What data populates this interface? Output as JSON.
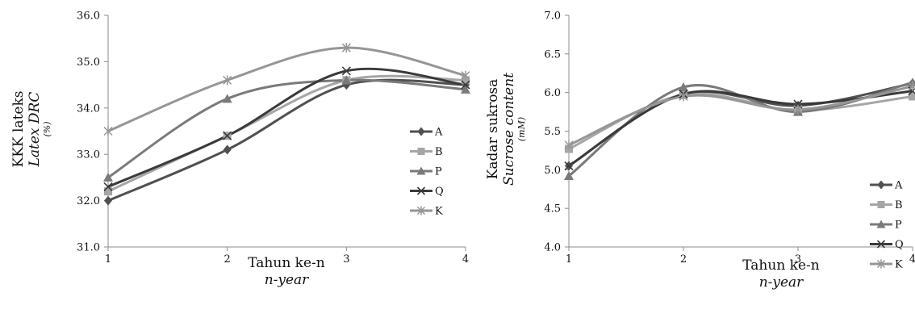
{
  "chart_data": [
    {
      "type": "line",
      "x": [
        1,
        2,
        3,
        4
      ],
      "xlabel": "Tahun ke-n",
      "xlabel_italic": "n-year",
      "ylabel": "KKK lateks",
      "ylabel_italic": "Latex DRC",
      "yunit": "(%)",
      "ylim": [
        31.0,
        36.0
      ],
      "yticks": [
        "31.0",
        "32.0",
        "33.0",
        "34.0",
        "35.0",
        "36.0"
      ],
      "xticks": [
        "1",
        "2",
        "3",
        "4"
      ],
      "grid": false,
      "legend_position": "right",
      "series": [
        {
          "name": "A",
          "marker": "diamond",
          "color": "#505050",
          "values": [
            32.0,
            33.1,
            34.5,
            34.5
          ]
        },
        {
          "name": "B",
          "marker": "square",
          "color": "#a6a6a6",
          "values": [
            32.2,
            33.4,
            34.6,
            34.6
          ]
        },
        {
          "name": "P",
          "marker": "triangle",
          "color": "#7a7a7a",
          "values": [
            32.5,
            34.2,
            34.6,
            34.4
          ]
        },
        {
          "name": "Q",
          "marker": "x",
          "color": "#3a3a3a",
          "values": [
            32.3,
            33.4,
            34.8,
            34.5
          ]
        },
        {
          "name": "K",
          "marker": "star",
          "color": "#969696",
          "values": [
            33.5,
            34.6,
            35.3,
            34.7
          ]
        }
      ]
    },
    {
      "type": "line",
      "x": [
        1,
        2,
        3,
        4
      ],
      "xlabel": "Tahun ke-n",
      "xlabel_italic": "n-year",
      "ylabel": "Kadar sukrosa",
      "ylabel_italic": "Sucrose content",
      "yunit": "(mM)",
      "ylim": [
        4.0,
        7.0
      ],
      "yticks": [
        "4.0",
        "4.5",
        "5.0",
        "5.5",
        "6.0",
        "6.5",
        "7.0"
      ],
      "xticks": [
        "1",
        "2",
        "3",
        "4"
      ],
      "grid": false,
      "legend_position": "right",
      "series": [
        {
          "name": "A",
          "marker": "diamond",
          "color": "#505050",
          "values": [
            5.05,
            5.98,
            5.83,
            6.12
          ]
        },
        {
          "name": "B",
          "marker": "square",
          "color": "#a6a6a6",
          "values": [
            5.27,
            5.97,
            5.77,
            5.95
          ]
        },
        {
          "name": "P",
          "marker": "triangle",
          "color": "#7a7a7a",
          "values": [
            4.92,
            6.07,
            5.75,
            6.13
          ]
        },
        {
          "name": "Q",
          "marker": "x",
          "color": "#3a3a3a",
          "values": [
            5.05,
            5.98,
            5.85,
            6.02
          ]
        },
        {
          "name": "K",
          "marker": "star",
          "color": "#969696",
          "values": [
            5.32,
            5.95,
            5.78,
            6.08
          ]
        }
      ]
    }
  ]
}
